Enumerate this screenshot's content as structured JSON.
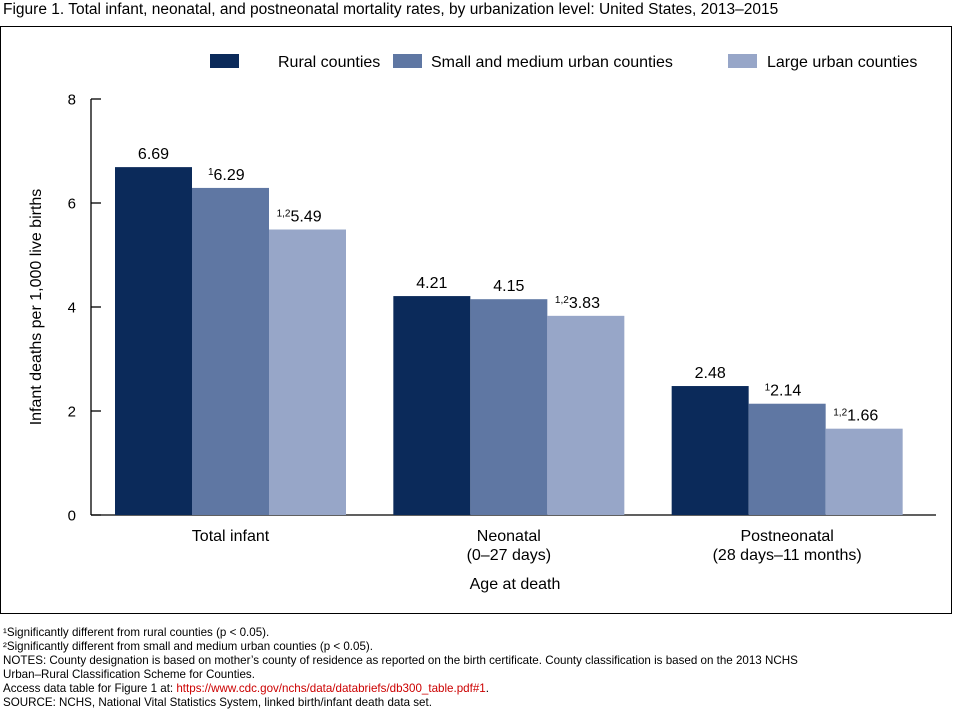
{
  "figure_title": "Figure 1. Total infant, neonatal, and postneonatal mortality rates, by urbanization level: United States, 2013–2015",
  "chart_data": {
    "type": "bar",
    "categories": [
      {
        "lines": [
          "Total infant"
        ]
      },
      {
        "lines": [
          "Neonatal",
          "(0–27 days)"
        ]
      },
      {
        "lines": [
          "Postneonatal",
          "(28 days–11 months)"
        ]
      }
    ],
    "series": [
      {
        "name": "Rural counties",
        "color": "#0b2a5a",
        "values": [
          6.69,
          4.21,
          2.48
        ],
        "labels": [
          "6.69",
          "4.21",
          "2.48"
        ],
        "markers": [
          "",
          "",
          ""
        ]
      },
      {
        "name": "Small and medium urban counties",
        "color": "#5f77a3",
        "values": [
          6.29,
          4.15,
          2.14
        ],
        "labels": [
          "6.29",
          "4.15",
          "2.14"
        ],
        "markers": [
          "1",
          "",
          "1"
        ]
      },
      {
        "name": "Large urban counties",
        "color": "#97a6c8",
        "values": [
          5.49,
          3.83,
          1.66
        ],
        "labels": [
          "5.49",
          "3.83",
          "1.66"
        ],
        "markers": [
          "1,2",
          "1,2",
          "1,2"
        ]
      }
    ],
    "xlabel": "Age at death",
    "ylabel": "Infant deaths per 1,000 live births",
    "ylim": [
      0,
      8
    ],
    "yticks": [
      0,
      2,
      4,
      6,
      8
    ],
    "grid": false,
    "legend_position": "top-right"
  },
  "footnotes": {
    "fn1": "¹Significantly different from rural counties (p < 0.05).",
    "fn2": "²Significantly different from small and medium urban counties (p < 0.05).",
    "notes_line1": "NOTES: County designation is based on mother’s county of residence as reported on the birth certificate. County classification is based on the 2013 NCHS",
    "notes_line2": "Urban–Rural Classification Scheme for Counties.",
    "access_prefix": "Access data table for Figure 1 at: ",
    "access_link": "https://www.cdc.gov/nchs/data/databriefs/db300_table.pdf#1",
    "access_suffix": ".",
    "source": "SOURCE: NCHS, National Vital Statistics System, linked birth/infant death data set."
  }
}
